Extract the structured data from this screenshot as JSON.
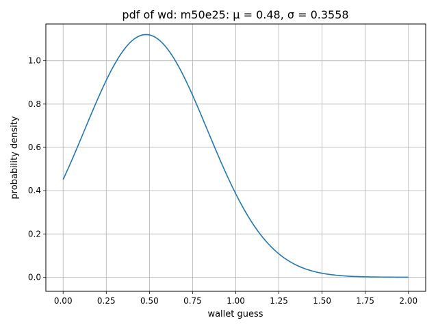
{
  "chart_data": {
    "type": "line",
    "title": "pdf of wd: m50e25: μ = 0.48, σ = 0.3558",
    "xlabel": "wallet guess",
    "ylabel": "probability density",
    "xlim": [
      -0.1,
      2.1
    ],
    "ylim": [
      -0.065,
      1.17
    ],
    "xticks": [
      0.0,
      0.25,
      0.5,
      0.75,
      1.0,
      1.25,
      1.5,
      1.75,
      2.0
    ],
    "xtick_labels": [
      "0.00",
      "0.25",
      "0.50",
      "0.75",
      "1.00",
      "1.25",
      "1.50",
      "1.75",
      "2.00"
    ],
    "yticks": [
      0.0,
      0.2,
      0.4,
      0.6,
      0.8,
      1.0
    ],
    "ytick_labels": [
      "0.0",
      "0.2",
      "0.4",
      "0.6",
      "0.8",
      "1.0"
    ],
    "grid": true,
    "series": [
      {
        "name": "pdf",
        "color": "#1f77b4",
        "mu": 0.48,
        "sigma": 0.3558,
        "x_range": [
          0.0,
          2.0
        ],
        "samples": 201
      }
    ]
  }
}
